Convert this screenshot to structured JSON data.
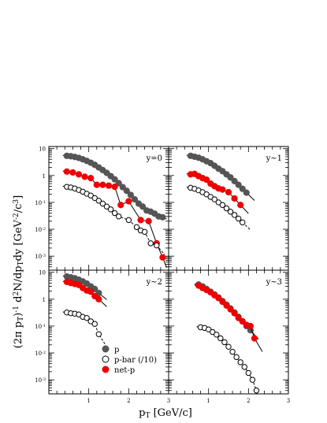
{
  "figure": {
    "ylabel_parts": [
      "(2π p",
      "T",
      ")",
      "-1",
      " d",
      "2",
      "N/dp",
      "T",
      "dy [GeV",
      "-2",
      "/c",
      "3",
      "]"
    ],
    "xlabel_parts": [
      "p",
      "T",
      " [GeV/c]"
    ],
    "x_ticks": [
      "1",
      "2",
      "3"
    ],
    "y_ticks": [
      {
        "base": "10",
        "exp": "-3",
        "v": 0.001
      },
      {
        "base": "10",
        "exp": "-2",
        "v": 0.01
      },
      {
        "base": "10",
        "exp": "-1",
        "v": 0.1
      },
      {
        "base": "1",
        "exp": "",
        "v": 1
      },
      {
        "base": "10",
        "exp": "",
        "v": 10
      }
    ],
    "legend": [
      {
        "marker": "filled-gray",
        "label": "p"
      },
      {
        "marker": "open",
        "label": "p-bar (/10)"
      },
      {
        "marker": "filled-red",
        "label": "net-p"
      }
    ]
  },
  "colors": {
    "p": "#555555",
    "net_p": "#ee0000",
    "pbar_stroke": "#000000"
  },
  "chart_data": [
    {
      "type": "scatter",
      "label": "y=0",
      "yscale": "log",
      "xlim": [
        0,
        3
      ],
      "ylim": [
        0.0003,
        12
      ],
      "series": [
        {
          "name": "p",
          "x": [
            0.45,
            0.55,
            0.65,
            0.75,
            0.85,
            0.95,
            1.05,
            1.15,
            1.25,
            1.35,
            1.45,
            1.55,
            1.65,
            1.75,
            1.85,
            1.95,
            2.05,
            2.15,
            2.25,
            2.35,
            2.45,
            2.55,
            2.65,
            2.75,
            2.85
          ],
          "y": [
            5.4,
            5.2,
            4.9,
            4.5,
            4.0,
            3.5,
            3.0,
            2.5,
            2.0,
            1.6,
            1.25,
            0.95,
            0.72,
            0.52,
            0.37,
            0.27,
            0.19,
            0.13,
            0.09,
            0.07,
            0.05,
            0.045,
            0.038,
            0.03,
            0.028
          ]
        },
        {
          "name": "net-p",
          "x": [
            0.45,
            0.6,
            0.75,
            0.9,
            1.05,
            1.2,
            1.35,
            1.5,
            1.65,
            1.8,
            2.0,
            2.3,
            2.5,
            2.7,
            2.85
          ],
          "y": [
            1.4,
            1.3,
            1.1,
            0.9,
            0.8,
            0.45,
            0.45,
            0.42,
            0.38,
            0.08,
            0.11,
            0.022,
            0.02,
            0.003,
            0.0009
          ]
        },
        {
          "name": "p-bar (/10)",
          "x": [
            0.45,
            0.55,
            0.65,
            0.75,
            0.85,
            0.95,
            1.05,
            1.15,
            1.25,
            1.35,
            1.45,
            1.55,
            1.65,
            1.75,
            2.0,
            2.2,
            2.3,
            2.4,
            2.55,
            2.7
          ],
          "y": [
            0.38,
            0.36,
            0.33,
            0.29,
            0.25,
            0.21,
            0.18,
            0.145,
            0.115,
            0.09,
            0.07,
            0.055,
            0.04,
            0.03,
            0.022,
            0.012,
            0.009,
            0.008,
            0.003,
            0.0025
          ]
        }
      ]
    },
    {
      "type": "scatter",
      "label": "y~1",
      "yscale": "log",
      "xlim": [
        0,
        3
      ],
      "ylim": [
        0.0003,
        12
      ],
      "series": [
        {
          "name": "p",
          "x": [
            0.55,
            0.65,
            0.75,
            0.85,
            0.95,
            1.05,
            1.15,
            1.25,
            1.35,
            1.45,
            1.55,
            1.65,
            1.75,
            1.85,
            1.95
          ],
          "y": [
            5.4,
            5.0,
            4.6,
            4.0,
            3.4,
            2.9,
            2.3,
            1.8,
            1.45,
            1.1,
            0.85,
            0.62,
            0.45,
            0.32,
            0.23
          ]
        },
        {
          "name": "net-p",
          "x": [
            0.55,
            0.65,
            0.75,
            0.85,
            0.95,
            1.05,
            1.15,
            1.25,
            1.35,
            1.5,
            1.65,
            1.8
          ],
          "y": [
            1.1,
            1.15,
            0.95,
            0.8,
            0.7,
            0.5,
            0.4,
            0.33,
            0.3,
            0.24,
            0.14,
            0.08
          ]
        },
        {
          "name": "p-bar (/10)",
          "x": [
            0.55,
            0.65,
            0.75,
            0.85,
            0.95,
            1.05,
            1.15,
            1.25,
            1.35,
            1.45,
            1.55,
            1.65,
            1.75,
            1.85
          ],
          "y": [
            0.35,
            0.32,
            0.28,
            0.24,
            0.2,
            0.16,
            0.13,
            0.1,
            0.08,
            0.06,
            0.045,
            0.034,
            0.025,
            0.018
          ]
        }
      ]
    },
    {
      "type": "scatter",
      "label": "y~2",
      "yscale": "log",
      "xlim": [
        0,
        3
      ],
      "ylim": [
        0.0003,
        12
      ],
      "series": [
        {
          "name": "p",
          "x": [
            0.45,
            0.55,
            0.65,
            0.75,
            0.85,
            0.95,
            1.05,
            1.15,
            1.25
          ],
          "y": [
            7.0,
            6.5,
            6.0,
            5.3,
            4.6,
            3.8,
            3.0,
            2.4,
            1.7
          ]
        },
        {
          "name": "net-p",
          "x": [
            0.45,
            0.55,
            0.65,
            0.75,
            0.85,
            0.95,
            1.05,
            1.15,
            1.25
          ],
          "y": [
            4.4,
            4.0,
            3.7,
            3.4,
            2.6,
            2.1,
            1.9,
            1.3,
            1.0
          ]
        },
        {
          "name": "p-bar (/10)",
          "x": [
            0.45,
            0.55,
            0.65,
            0.75,
            0.85,
            0.95,
            1.05,
            1.15,
            1.25
          ],
          "y": [
            0.32,
            0.3,
            0.29,
            0.27,
            0.22,
            0.2,
            0.15,
            0.12,
            0.05
          ]
        }
      ]
    },
    {
      "type": "scatter",
      "label": "y~3",
      "yscale": "log",
      "xlim": [
        0,
        3
      ],
      "ylim": [
        0.0003,
        12
      ],
      "series": [
        {
          "name": "p",
          "x": [
            0.75,
            0.85,
            0.95,
            1.05,
            1.15,
            1.25,
            1.35,
            1.45,
            1.55,
            1.65,
            1.75,
            1.85,
            1.95,
            2.05
          ],
          "y": [
            3.5,
            3.0,
            2.4,
            1.9,
            1.5,
            1.15,
            0.85,
            0.62,
            0.45,
            0.32,
            0.22,
            0.15,
            0.1,
            0.07
          ]
        },
        {
          "name": "net-p",
          "x": [
            0.75,
            0.85,
            0.95,
            1.05,
            1.15,
            1.25,
            1.35,
            1.45,
            1.55,
            1.65,
            1.75,
            1.85,
            1.95,
            2.05,
            2.15
          ],
          "y": [
            3.2,
            2.6,
            2.2,
            1.8,
            1.4,
            1.1,
            0.8,
            0.58,
            0.42,
            0.3,
            0.2,
            0.15,
            0.11,
            0.1,
            0.035
          ]
        },
        {
          "name": "p-bar (/10)",
          "x": [
            0.8,
            0.9,
            1.0,
            1.1,
            1.2,
            1.3,
            1.4,
            1.5,
            1.6,
            1.7,
            1.8,
            1.9,
            2.0,
            2.1,
            2.2
          ],
          "y": [
            0.09,
            0.085,
            0.075,
            0.06,
            0.048,
            0.035,
            0.025,
            0.017,
            0.011,
            0.007,
            0.0045,
            0.003,
            0.0018,
            0.001,
            0.0004
          ]
        }
      ]
    }
  ]
}
